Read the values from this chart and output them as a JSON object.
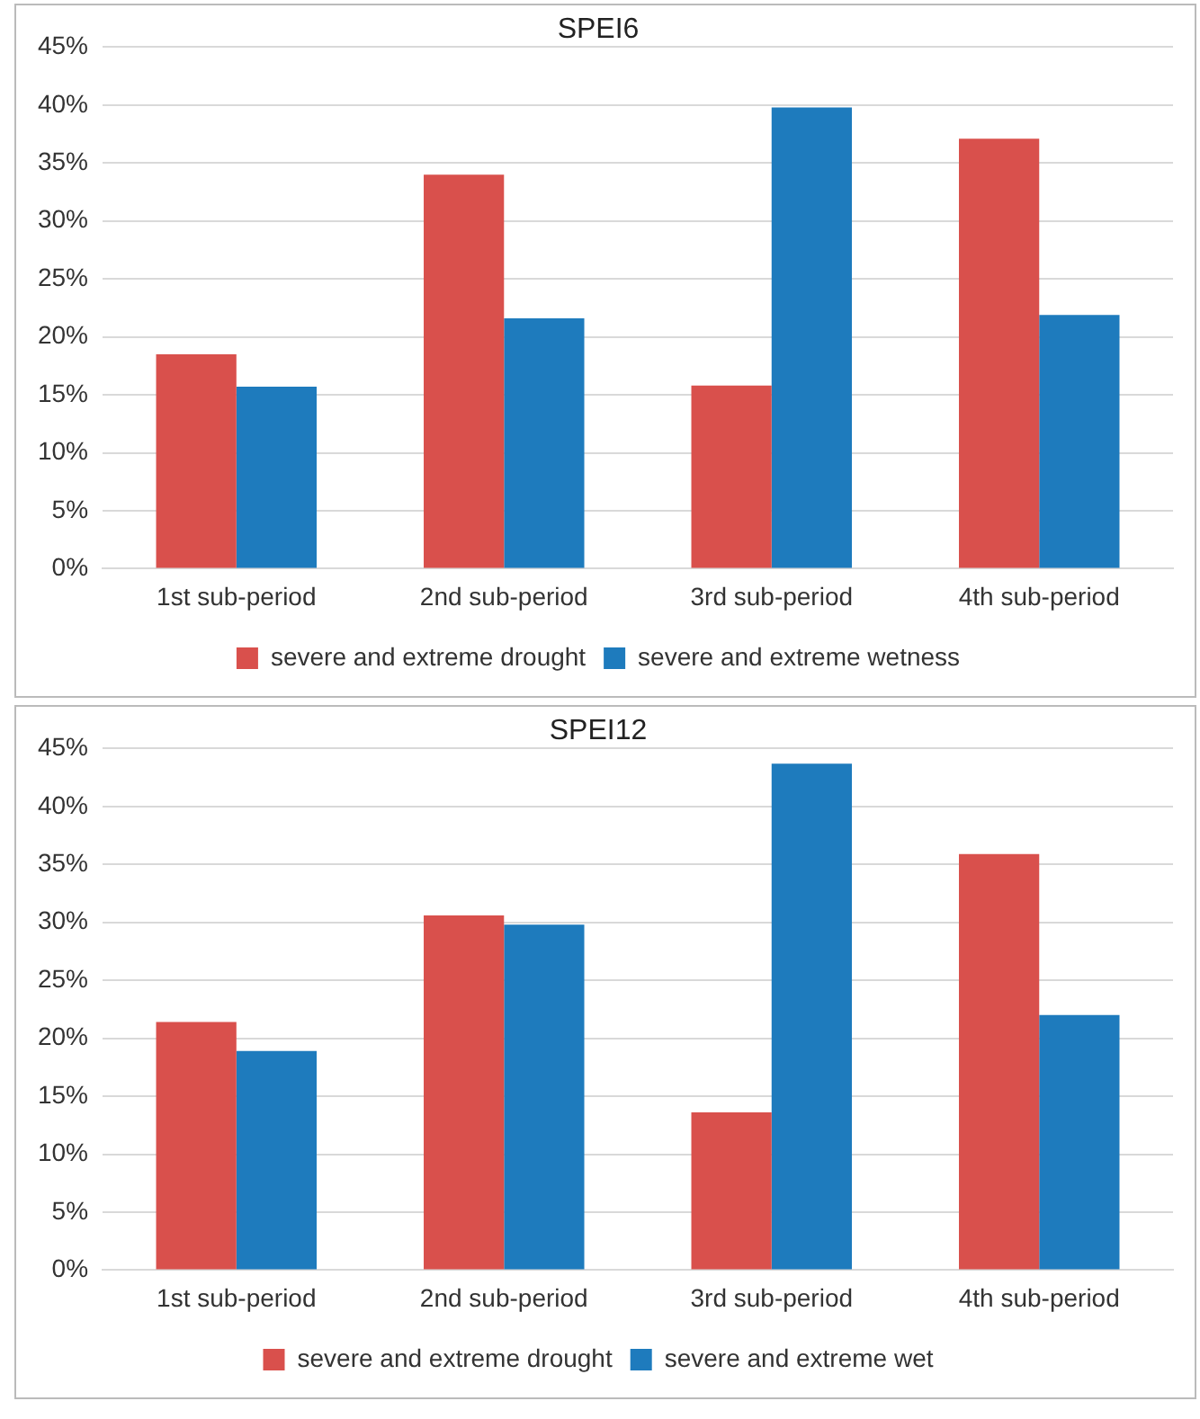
{
  "chart_data": [
    {
      "type": "bar",
      "title": "SPEI6",
      "categories": [
        "1st sub-period",
        "2nd sub-period",
        "3rd sub-period",
        "4th sub-period"
      ],
      "series": [
        {
          "name": "severe and extreme drought",
          "color": "#d9504c",
          "values": [
            18.5,
            34.0,
            15.8,
            37.1
          ]
        },
        {
          "name": "severe and extreme wetness",
          "color": "#1e7bbd",
          "values": [
            15.7,
            21.6,
            39.8,
            21.9
          ]
        }
      ],
      "ylim": [
        0,
        45
      ],
      "yticks": [
        {
          "value": 0,
          "label": "0%"
        },
        {
          "value": 5,
          "label": "5%"
        },
        {
          "value": 10,
          "label": "10%"
        },
        {
          "value": 15,
          "label": "15%"
        },
        {
          "value": 20,
          "label": "20%"
        },
        {
          "value": 25,
          "label": "25%"
        },
        {
          "value": 30,
          "label": "30%"
        },
        {
          "value": 35,
          "label": "35%"
        },
        {
          "value": 40,
          "label": "40%"
        },
        {
          "value": 45,
          "label": "45%"
        }
      ],
      "grid": "y",
      "legend": "bottom"
    },
    {
      "type": "bar",
      "title": "SPEI12",
      "categories": [
        "1st sub-period",
        "2nd sub-period",
        "3rd sub-period",
        "4th sub-period"
      ],
      "series": [
        {
          "name": "severe and extreme drought",
          "color": "#d9504c",
          "values": [
            21.4,
            30.6,
            13.6,
            35.9
          ]
        },
        {
          "name": "severe and extreme wet",
          "color": "#1e7bbd",
          "values": [
            18.9,
            29.8,
            43.7,
            22.0
          ]
        }
      ],
      "ylim": [
        0,
        45
      ],
      "yticks": [
        {
          "value": 0,
          "label": "0%"
        },
        {
          "value": 5,
          "label": "5%"
        },
        {
          "value": 10,
          "label": "10%"
        },
        {
          "value": 15,
          "label": "15%"
        },
        {
          "value": 20,
          "label": "20%"
        },
        {
          "value": 25,
          "label": "25%"
        },
        {
          "value": 30,
          "label": "30%"
        },
        {
          "value": 35,
          "label": "35%"
        },
        {
          "value": 40,
          "label": "40%"
        },
        {
          "value": 45,
          "label": "45%"
        }
      ],
      "grid": "y",
      "legend": "bottom"
    }
  ]
}
